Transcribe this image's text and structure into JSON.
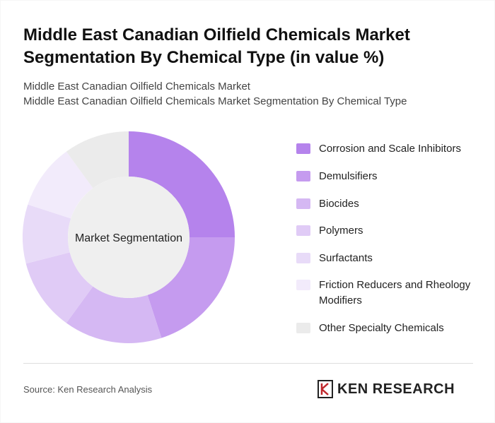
{
  "header": {
    "title": "Middle East Canadian Oilfield Chemicals Market Segmentation By Chemical Type (in value %)",
    "subtitle_line1": "Middle East Canadian Oilfield Chemicals Market",
    "subtitle_line2": "Middle East Canadian Oilfield Chemicals Market Segmentation By Chemical Type"
  },
  "chart_data": {
    "type": "pie",
    "center_label": "Market Segmentation",
    "categories": [
      "Corrosion and Scale Inhibitors",
      "Demulsifiers",
      "Biocides",
      "Polymers",
      "Surfactants",
      "Friction Reducers and Rheology Modifiers",
      "Other Specialty Chemicals"
    ],
    "values": [
      25,
      20,
      15,
      11,
      9,
      10,
      10
    ],
    "colors": [
      "#b583ec",
      "#c59bef",
      "#d5b8f3",
      "#e0cbf6",
      "#e8dbf8",
      "#f2ebfb",
      "#ebebeb"
    ],
    "legend_position": "right"
  },
  "footer": {
    "source": "Source: Ken Research Analysis",
    "brand": "KEN RESEARCH"
  }
}
